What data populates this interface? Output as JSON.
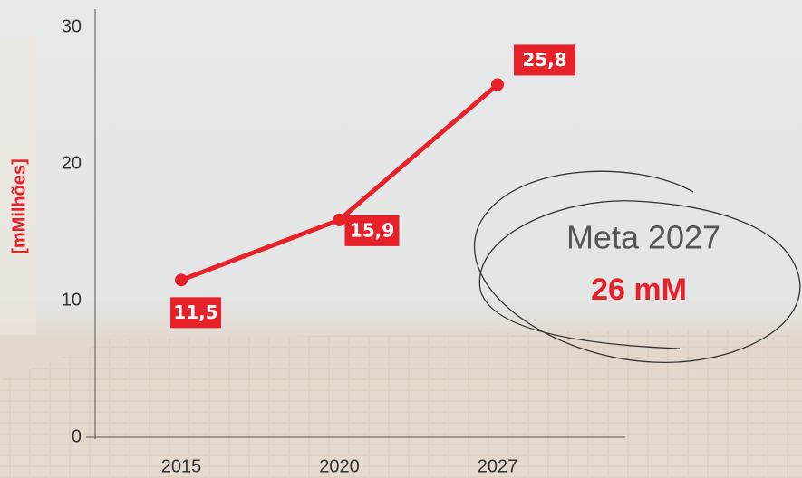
{
  "chart_data": {
    "type": "line",
    "y_label": "[mMilhões]",
    "categories": [
      "2015",
      "2020",
      "2027"
    ],
    "values": [
      11.5,
      15.9,
      25.8
    ],
    "value_labels": [
      "11,5",
      "15,9",
      "25,8"
    ],
    "color": "#e62129",
    "ylim": [
      0,
      30
    ],
    "yticks": [
      0,
      10,
      20,
      30
    ],
    "annotation": {
      "title": "Meta 2027",
      "value": "26 mM"
    }
  }
}
